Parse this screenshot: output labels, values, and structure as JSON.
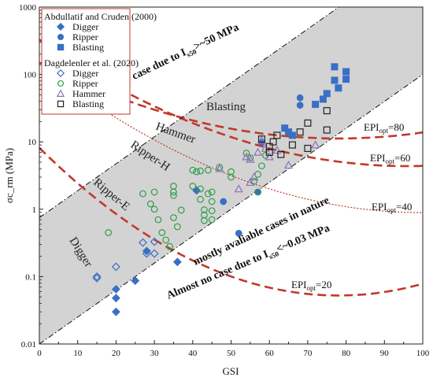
{
  "chart_data": {
    "type": "scatter",
    "xlabel": "GSI",
    "ylabel": "σc_rm (MPa)",
    "xlim": [
      0,
      100
    ],
    "ylim": [
      0.01,
      1000
    ],
    "yscale": "log",
    "xticks": [
      "0",
      "10",
      "20",
      "30",
      "40",
      "50",
      "60",
      "70",
      "80",
      "90",
      "100"
    ],
    "yticks": [
      "0.01",
      "0.1",
      "1",
      "10",
      "100",
      "1000"
    ],
    "legend": {
      "group1_title": "Abdullatif and Cruden (2000)",
      "group2_title": "Dagdelenler et al. (2020)",
      "entries": [
        {
          "label": "Digger",
          "marker": "diamond",
          "filled": true,
          "group": 1
        },
        {
          "label": "Ripper",
          "marker": "circle",
          "filled": true,
          "group": 1
        },
        {
          "label": "Blasting",
          "marker": "square",
          "filled": true,
          "group": 1
        },
        {
          "label": "Digger",
          "marker": "diamond",
          "filled": false,
          "group": 2
        },
        {
          "label": "Ripper",
          "marker": "circle",
          "filled": false,
          "group": 2
        },
        {
          "label": "Hammer",
          "marker": "triangle",
          "filled": false,
          "group": 2
        },
        {
          "label": "Blasting",
          "marker": "square",
          "filled": false,
          "group": 2
        }
      ]
    },
    "zones": [
      "Digger",
      "Ripper-E",
      "Ripper-H",
      "Hammer",
      "Blasting"
    ],
    "annotations": {
      "top_main": "Almost no case due to I",
      "top_sub": "s50",
      "top_tail": ">~50 MPa",
      "bottom_main": "Almost no case due to I",
      "bottom_sub": "s50",
      "bottom_tail": "<~0.03 MPa",
      "middle": "mostly avaliable  cases in nature"
    },
    "epi_curves": [
      {
        "main": "EPI",
        "sub": "opt",
        "value": "=80",
        "style": "dashed"
      },
      {
        "main": "EPI",
        "sub": "opt",
        "value": "=60",
        "style": "dashed"
      },
      {
        "main": "EPI",
        "sub": "opt",
        "value": "=40",
        "style": "dotted"
      },
      {
        "main": "EPI",
        "sub": "opt",
        "value": "=20",
        "style": "dashed"
      }
    ],
    "colors": {
      "blue": "#3a6fc4",
      "green": "#2e9e48",
      "purple": "#8a73b8",
      "black": "#222222",
      "band": "#d3d3d3",
      "curve": "#c0392b"
    },
    "series": [
      {
        "name": "Digger",
        "group": "Abdullatif and Cruden (2000)",
        "points": [
          [
            20,
            0.065
          ],
          [
            20,
            0.048
          ],
          [
            20,
            0.03
          ],
          [
            25,
            0.087
          ],
          [
            28,
            0.24
          ],
          [
            36,
            0.165
          ],
          [
            41,
            1.9
          ]
        ]
      },
      {
        "name": "Ripper",
        "group": "Abdullatif and Cruden (2000)",
        "points": [
          [
            48,
            1.3
          ],
          [
            52,
            0.44
          ],
          [
            57,
            1.8
          ],
          [
            58,
            9.8
          ],
          [
            68,
            35
          ],
          [
            68,
            45
          ]
        ]
      },
      {
        "name": "Blasting",
        "group": "Abdullatif and Cruden (2000)",
        "points": [
          [
            64,
            16
          ],
          [
            65,
            14
          ],
          [
            66,
            12.5
          ],
          [
            72,
            36
          ],
          [
            74,
            43
          ],
          [
            75,
            52
          ],
          [
            77,
            82
          ],
          [
            77,
            130
          ],
          [
            78,
            63
          ],
          [
            80,
            85
          ],
          [
            80,
            110
          ]
        ]
      },
      {
        "name": "Digger",
        "group": "Dagdelenler et al. (2020)",
        "points": [
          [
            15,
            0.1
          ],
          [
            15,
            0.095
          ],
          [
            20,
            0.14
          ],
          [
            27,
            0.32
          ],
          [
            28,
            0.22
          ],
          [
            30,
            0.22
          ],
          [
            30,
            0.33
          ]
        ]
      },
      {
        "name": "Ripper",
        "group": "Dagdelenler et al. (2020)",
        "points": [
          [
            18,
            0.45
          ],
          [
            27,
            1.7
          ],
          [
            29,
            1.2
          ],
          [
            30,
            1.8
          ],
          [
            30,
            1.0
          ],
          [
            31,
            0.7
          ],
          [
            32,
            0.45
          ],
          [
            33,
            0.35
          ],
          [
            34,
            0.28
          ],
          [
            35,
            2.2
          ],
          [
            35,
            1.8
          ],
          [
            35,
            1.6
          ],
          [
            35,
            0.75
          ],
          [
            36,
            0.55
          ],
          [
            37,
            0.97
          ],
          [
            40,
            3.8
          ],
          [
            40,
            2.2
          ],
          [
            41,
            3.6
          ],
          [
            42,
            3.7
          ],
          [
            42,
            2.0
          ],
          [
            42,
            1.4
          ],
          [
            43,
            0.98
          ],
          [
            43,
            0.82
          ],
          [
            43,
            0.68
          ],
          [
            44,
            3.8
          ],
          [
            44,
            1.7
          ],
          [
            45,
            1.8
          ],
          [
            45,
            1.3
          ],
          [
            45,
            0.95
          ],
          [
            45,
            0.7
          ],
          [
            47,
            4.2
          ],
          [
            50,
            3.6
          ],
          [
            50,
            3.0
          ],
          [
            54,
            6.8
          ],
          [
            55,
            5.8
          ],
          [
            56,
            2.6
          ],
          [
            57,
            3.3
          ],
          [
            57,
            1.8
          ],
          [
            58,
            4.4
          ],
          [
            59,
            6.3
          ]
        ]
      },
      {
        "name": "Hammer",
        "group": "Dagdelenler et al. (2020)",
        "points": [
          [
            47,
            4.0
          ],
          [
            52,
            2.0
          ],
          [
            54,
            6.0
          ],
          [
            55,
            2.5
          ],
          [
            55,
            5.5
          ],
          [
            56,
            3.0
          ],
          [
            57,
            7.0
          ],
          [
            58,
            10.5
          ],
          [
            59,
            8.0
          ],
          [
            60,
            6.0
          ],
          [
            62,
            7.5
          ],
          [
            65,
            4.5
          ],
          [
            72,
            9.0
          ]
        ]
      },
      {
        "name": "Blasting",
        "group": "Dagdelenler et al. (2020)",
        "points": [
          [
            58,
            11
          ],
          [
            60,
            8.5
          ],
          [
            60,
            7
          ],
          [
            61,
            10
          ],
          [
            62,
            12.5
          ],
          [
            63,
            6.5
          ],
          [
            66,
            9
          ],
          [
            68,
            14
          ],
          [
            70,
            19
          ],
          [
            70,
            8
          ],
          [
            75,
            29
          ],
          [
            75,
            15
          ]
        ]
      }
    ]
  }
}
